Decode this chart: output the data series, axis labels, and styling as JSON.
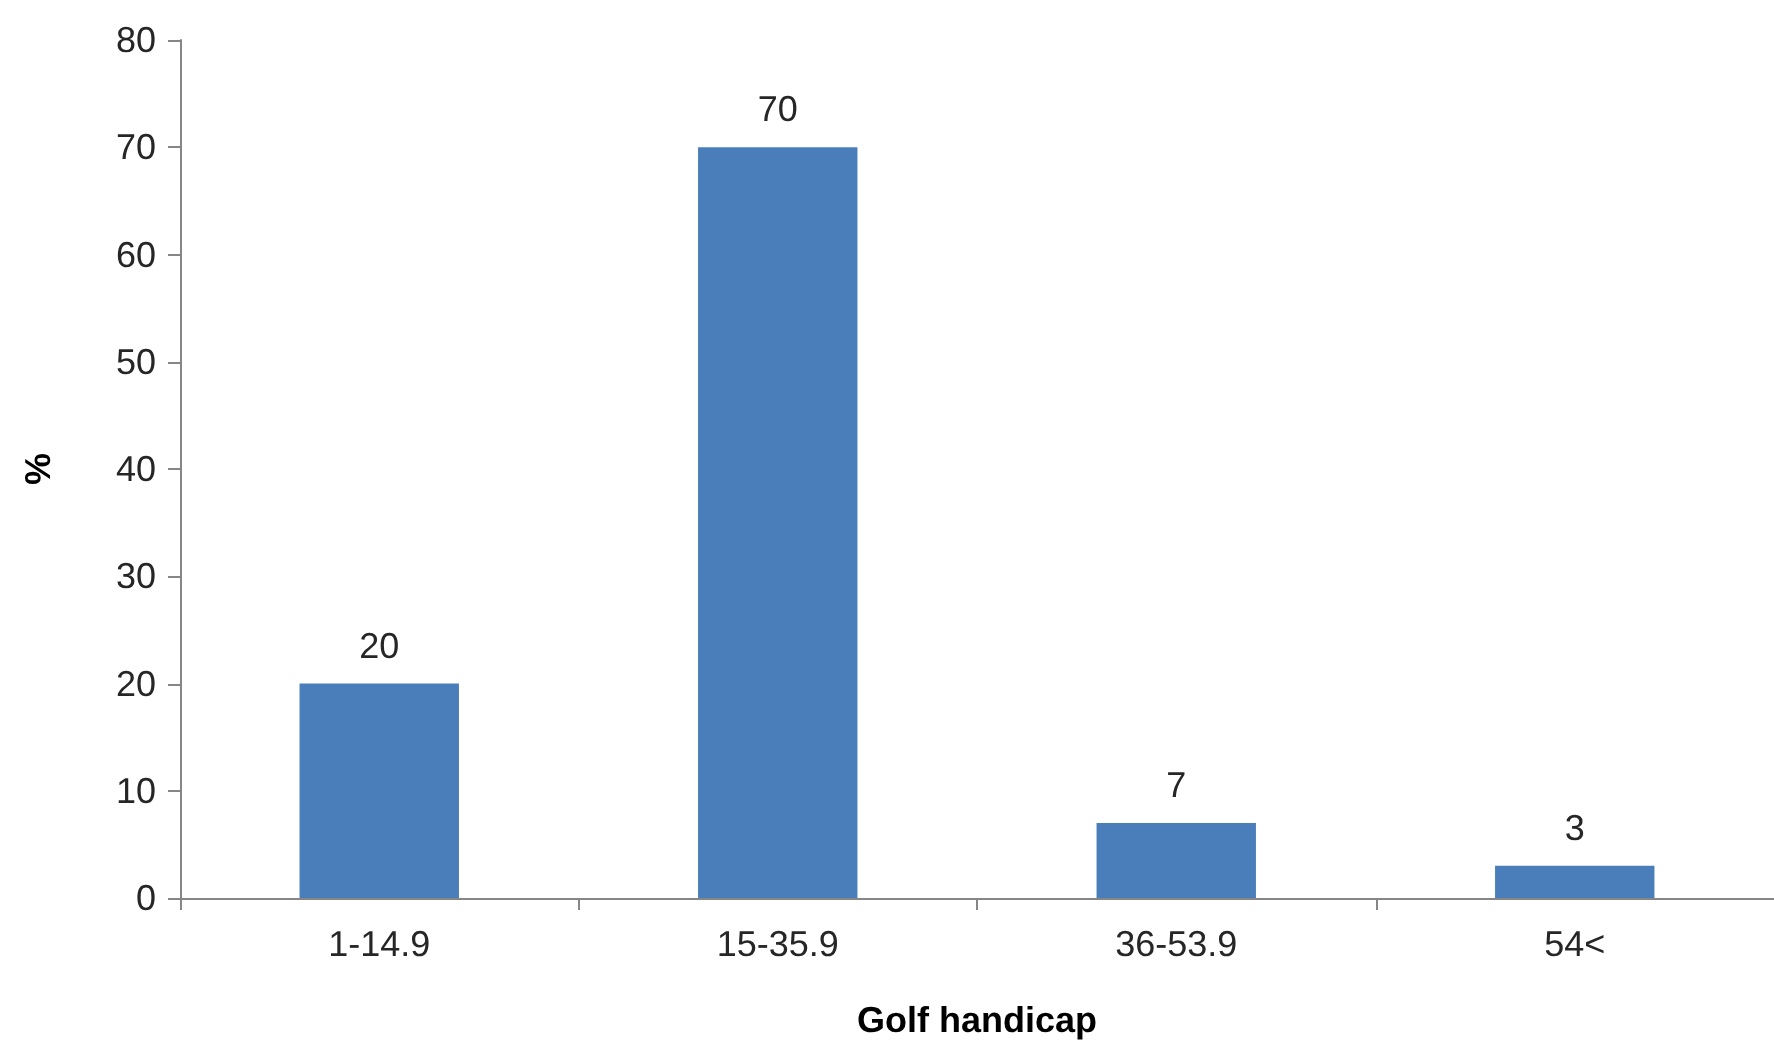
{
  "chart_data": {
    "type": "bar",
    "xlabel": "Golf handicap",
    "ylabel": "%",
    "categories": [
      "1-14.9",
      "15-35.9",
      "36-53.9",
      "54<"
    ],
    "values": [
      20,
      70,
      7,
      3
    ],
    "color": "#4a7ebb",
    "ylim": [
      0,
      80
    ],
    "yticks": [
      0,
      10,
      20,
      30,
      40,
      50,
      60,
      70,
      80
    ],
    "grid": false,
    "data_labels": true
  }
}
